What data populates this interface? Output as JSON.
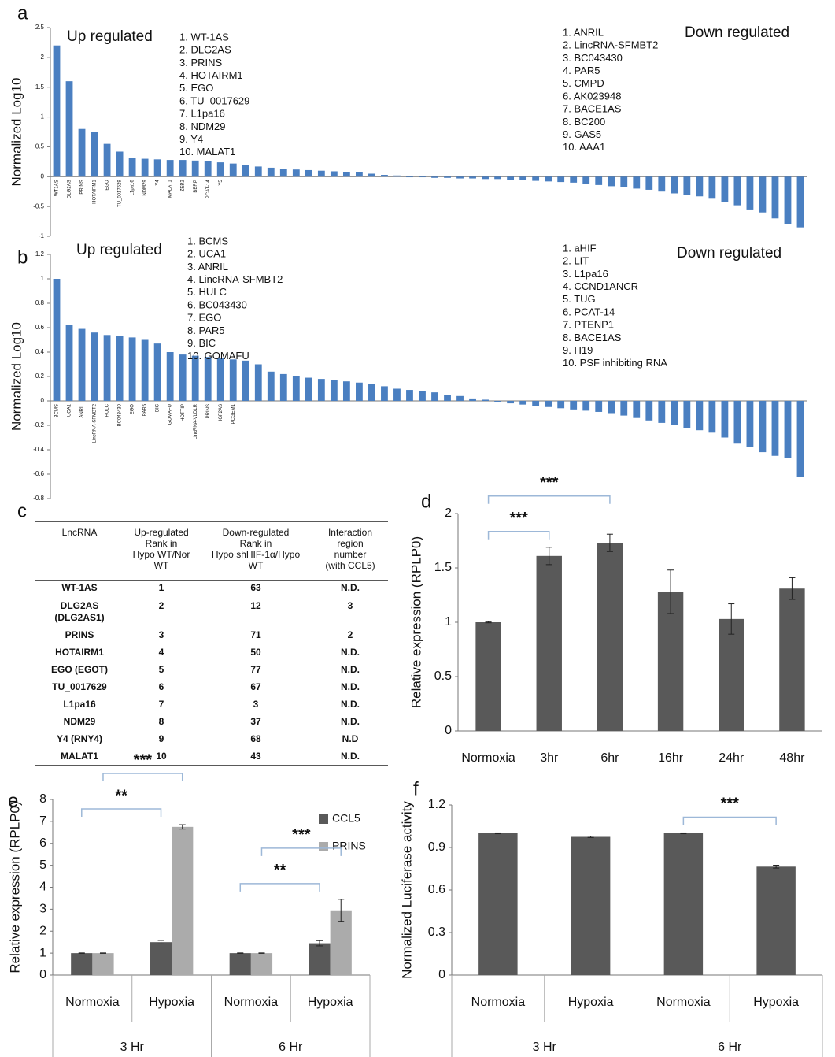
{
  "chart_data": [
    {
      "type": "bar",
      "panel_label": "a",
      "y_label": "Normalized Log10",
      "color": "#4a7fc1",
      "up_label": "Up regulated",
      "down_label": "Down regulated",
      "up_list": [
        "1. WT-1AS",
        "2. DLG2AS",
        "3. PRINS",
        "4. HOTAIRM1",
        "5. EGO",
        "6. TU_0017629",
        "7. L1pa16",
        "8. NDM29",
        "9. Y4",
        "10. MALAT1"
      ],
      "down_list": [
        "1. ANRIL",
        "2. LincRNA-SFMBT2",
        "3. BC043430",
        "4. PAR5",
        "5. CMPD",
        "6. AK023948",
        "7. BACE1AS",
        "8. BC200",
        "9. GAS5",
        "10. AAA1"
      ],
      "categories": [
        "WT1AS",
        "DLG2AS",
        "PRINS",
        "HOTAIRM1",
        "EGO",
        "TU_0017629",
        "L1pa16",
        "NDM29",
        "Y4",
        "MALAT1",
        "ZEB2",
        "BERP",
        "PCAT-14",
        "Y5",
        null,
        null,
        null,
        null,
        null,
        null,
        null,
        null,
        null,
        null,
        null,
        null,
        null,
        null,
        null,
        null,
        null,
        null,
        null,
        null,
        null,
        null,
        null,
        null,
        null,
        null,
        null,
        null,
        null,
        null,
        null,
        null,
        null,
        null,
        null,
        null,
        null,
        null,
        null,
        null,
        null,
        null,
        null,
        null,
        null,
        null
      ],
      "values": [
        2.2,
        1.6,
        0.8,
        0.75,
        0.55,
        0.42,
        0.32,
        0.3,
        0.29,
        0.28,
        0.28,
        0.27,
        0.26,
        0.24,
        0.22,
        0.2,
        0.17,
        0.15,
        0.13,
        0.12,
        0.11,
        0.1,
        0.09,
        0.08,
        0.07,
        0.05,
        0.03,
        0.02,
        -0.01,
        -0.01,
        -0.02,
        -0.02,
        -0.03,
        -0.03,
        -0.04,
        -0.04,
        -0.05,
        -0.06,
        -0.07,
        -0.08,
        -0.09,
        -0.1,
        -0.12,
        -0.14,
        -0.16,
        -0.18,
        -0.2,
        -0.22,
        -0.25,
        -0.28,
        -0.3,
        -0.33,
        -0.37,
        -0.42,
        -0.48,
        -0.55,
        -0.6,
        -0.7,
        -0.8,
        -0.85
      ],
      "ylim": [
        -1,
        2.5
      ],
      "yticks": [
        -1,
        -0.5,
        0,
        0.5,
        1,
        1.5,
        2,
        2.5
      ]
    },
    {
      "type": "bar",
      "panel_label": "b",
      "y_label": "Normalized Log10",
      "color": "#4a7fc1",
      "up_label": "Up regulated",
      "down_label": "Down regulated",
      "up_list": [
        "1. BCMS",
        "2. UCA1",
        "3. ANRIL",
        "4. LincRNA-SFMBT2",
        "5. HULC",
        "6. BC043430",
        "7. EGO",
        "8. PAR5",
        "9. BIC",
        "10. GOMAFU"
      ],
      "down_list": [
        "1. aHIF",
        "2. LIT",
        "3. L1pa16",
        "4. CCND1ANCR",
        "5. TUG",
        "6. PCAT-14",
        "7. PTENP1",
        "8. BACE1AS",
        "9. H19",
        "10. PSF inhibiting RNA"
      ],
      "categories": [
        "BCMS",
        "UCA1",
        "ANRIL",
        "LincRNA-SFMBT2",
        "HULC",
        "BC043430",
        "EGO",
        "PAR5",
        "BIC",
        "GOMAFU",
        "HOTTIP",
        "LincRNA-VLDLR",
        "PRINS",
        "IGF2AS",
        "PCGEM1",
        null,
        null,
        null,
        null,
        null,
        null,
        null,
        null,
        null,
        null,
        null,
        null,
        null,
        null,
        null,
        null,
        null,
        null,
        null,
        null,
        null,
        null,
        null,
        null,
        null,
        null,
        null,
        null,
        null,
        null,
        null,
        null,
        null,
        null,
        null,
        null,
        null,
        null,
        null,
        null,
        null,
        null,
        null,
        null,
        null
      ],
      "values": [
        1.0,
        0.62,
        0.59,
        0.56,
        0.54,
        0.53,
        0.52,
        0.5,
        0.47,
        0.4,
        0.38,
        0.37,
        0.36,
        0.35,
        0.34,
        0.33,
        0.3,
        0.24,
        0.22,
        0.2,
        0.19,
        0.18,
        0.17,
        0.16,
        0.15,
        0.14,
        0.12,
        0.1,
        0.09,
        0.08,
        0.07,
        0.05,
        0.04,
        0.02,
        0.01,
        -0.01,
        -0.02,
        -0.03,
        -0.04,
        -0.05,
        -0.06,
        -0.07,
        -0.08,
        -0.09,
        -0.1,
        -0.12,
        -0.14,
        -0.16,
        -0.18,
        -0.2,
        -0.22,
        -0.24,
        -0.26,
        -0.3,
        -0.35,
        -0.38,
        -0.42,
        -0.45,
        -0.47,
        -0.62
      ],
      "ylim": [
        -0.8,
        1.2
      ],
      "yticks": [
        -0.8,
        -0.6,
        -0.4,
        -0.2,
        0,
        0.2,
        0.4,
        0.6,
        0.8,
        1,
        1.2
      ]
    },
    {
      "type": "bar",
      "panel_label": "d",
      "y_label": "Relative expression (RPLP0)",
      "color": "#595959",
      "categories": [
        "Normoxia",
        "3hr",
        "6hr",
        "16hr",
        "24hr",
        "48hr"
      ],
      "values": [
        1.0,
        1.61,
        1.73,
        1.28,
        1.03,
        1.31
      ],
      "errors": [
        0.005,
        0.08,
        0.08,
        0.2,
        0.14,
        0.1
      ],
      "ylim": [
        0,
        2
      ],
      "yticks": [
        0,
        0.5,
        1,
        1.5,
        2
      ],
      "annotations": [
        {
          "text": "***",
          "from": 0,
          "to": 1
        },
        {
          "text": "***",
          "from": 0,
          "to": 2
        }
      ]
    },
    {
      "type": "grouped_bar",
      "panel_label": "e",
      "y_label": "Relative expression (RPLP0)",
      "categories": [
        "Normoxia",
        "Hypoxia",
        "Normoxia",
        "Hypoxia"
      ],
      "groups": [
        "3 Hr",
        "6 Hr"
      ],
      "series": [
        {
          "name": "CCL5",
          "color": "#595959",
          "values": [
            1.0,
            1.5,
            1.0,
            1.45
          ],
          "errors": [
            0.01,
            0.08,
            0.01,
            0.12
          ]
        },
        {
          "name": "PRINS",
          "color": "#ababab",
          "values": [
            1.0,
            6.75,
            1.0,
            2.95
          ],
          "errors": [
            0.01,
            0.1,
            0.01,
            0.5
          ]
        }
      ],
      "ylim": [
        0,
        8
      ],
      "yticks": [
        0,
        1,
        2,
        3,
        4,
        5,
        6,
        7,
        8
      ],
      "annotations": [
        {
          "text": "**",
          "series": 0,
          "from": 0,
          "to": 1
        },
        {
          "text": "***",
          "series": 1,
          "from": 0,
          "to": 1
        },
        {
          "text": "**",
          "series": 0,
          "from": 2,
          "to": 3
        },
        {
          "text": "***",
          "series": 1,
          "from": 2,
          "to": 3
        }
      ]
    },
    {
      "type": "bar",
      "panel_label": "f",
      "y_label": "Normalized Luciferase activity",
      "color": "#595959",
      "categories": [
        "Normoxia",
        "Hypoxia",
        "Normoxia",
        "Hypoxia"
      ],
      "groups": [
        "3 Hr",
        "6 Hr"
      ],
      "values": [
        1.0,
        0.975,
        1.0,
        0.765
      ],
      "errors": [
        0.003,
        0.005,
        0.003,
        0.01
      ],
      "ylim": [
        0,
        1.2
      ],
      "yticks": [
        0,
        0.3,
        0.6,
        0.9,
        1.2
      ],
      "annotations": [
        {
          "text": "***",
          "from": 2,
          "to": 3
        }
      ]
    }
  ],
  "table": {
    "panel_label": "c",
    "header": [
      [
        "LncRNA"
      ],
      [
        "Up-regulated",
        "Rank in",
        "Hypo WT/Nor",
        "WT"
      ],
      [
        "Down-regulated",
        "Rank in",
        "Hypo shHIF-1α/Hypo",
        "WT"
      ],
      [
        "Interaction",
        "region",
        "number",
        "(with CCL5)"
      ]
    ],
    "rows": [
      [
        "WT-1AS",
        1,
        63,
        "N.D."
      ],
      [
        [
          "DLG2AS",
          "(DLG2AS1)"
        ],
        2,
        12,
        3
      ],
      [
        "PRINS",
        3,
        71,
        2
      ],
      [
        "HOTAIRM1",
        4,
        50,
        "N.D."
      ],
      [
        "EGO (EGOT)",
        5,
        77,
        "N.D."
      ],
      [
        "TU_0017629",
        6,
        67,
        "N.D."
      ],
      [
        "L1pa16",
        7,
        3,
        "N.D."
      ],
      [
        "NDM29",
        8,
        37,
        "N.D."
      ],
      [
        "Y4 (RNY4)",
        9,
        68,
        "N.D"
      ],
      [
        "MALAT1",
        10,
        43,
        "N.D."
      ]
    ]
  }
}
